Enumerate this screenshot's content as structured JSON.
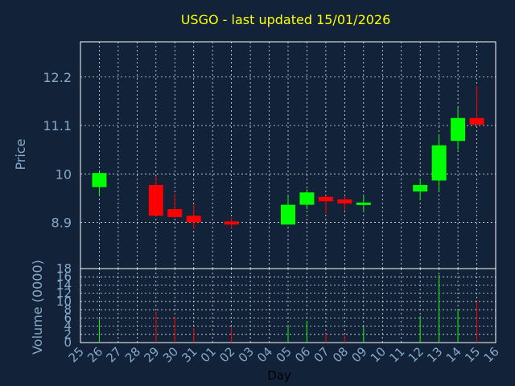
{
  "chart_data": {
    "type": "candlestick",
    "title": "USGO - last updated 15/01/2026",
    "price_ylabel": "Price",
    "volume_ylabel": "Volume (0000)",
    "xlabel": "Day",
    "x_ticks": [
      "25",
      "26",
      "27",
      "28",
      "29",
      "30",
      "31",
      "01",
      "02",
      "03",
      "04",
      "05",
      "06",
      "07",
      "08",
      "09",
      "10",
      "11",
      "12",
      "13",
      "14",
      "15",
      "16"
    ],
    "price_ticks": [
      "12.2",
      "11.1",
      "10",
      "8.9"
    ],
    "price_tick_values": [
      12.2,
      11.1,
      10.0,
      8.9
    ],
    "price_ylim": [
      7.85,
      13.0
    ],
    "volume_ticks": [
      "18",
      "16",
      "14",
      "12",
      "10",
      "8",
      "6",
      "4",
      "2",
      "0"
    ],
    "volume_tick_values": [
      18,
      16,
      14,
      12,
      10,
      8,
      6,
      4,
      2,
      0
    ],
    "volume_ylim": [
      0,
      18
    ],
    "colors": {
      "up": "#00ff00",
      "down": "#ff0000",
      "title": "#ffff00",
      "axis_text": "#87a9c9",
      "background": "#122238",
      "grid": "#ffffff"
    },
    "candles": [
      {
        "day": "26",
        "open": 9.7,
        "high": 10.05,
        "low": 9.5,
        "close": 10.02,
        "volume": 5.8
      },
      {
        "day": "29",
        "open": 9.75,
        "high": 9.95,
        "low": 9.05,
        "close": 9.05,
        "volume": 7.5
      },
      {
        "day": "30",
        "open": 9.2,
        "high": 9.55,
        "low": 9.0,
        "close": 9.02,
        "volume": 6.2
      },
      {
        "day": "31",
        "open": 9.05,
        "high": 9.3,
        "low": 8.75,
        "close": 8.9,
        "volume": 3.5
      },
      {
        "day": "02",
        "open": 8.92,
        "high": 9.0,
        "low": 8.75,
        "close": 8.85,
        "volume": 3.8
      },
      {
        "day": "05",
        "open": 8.85,
        "high": 9.5,
        "low": 8.85,
        "close": 9.3,
        "volume": 4.2
      },
      {
        "day": "06",
        "open": 9.3,
        "high": 9.65,
        "low": 9.2,
        "close": 9.58,
        "volume": 5.2
      },
      {
        "day": "07",
        "open": 9.48,
        "high": 9.5,
        "low": 9.1,
        "close": 9.38,
        "volume": 2.2
      },
      {
        "day": "08",
        "open": 9.42,
        "high": 9.48,
        "low": 9.17,
        "close": 9.33,
        "volume": 1.8
      },
      {
        "day": "09",
        "open": 9.3,
        "high": 9.5,
        "low": 9.15,
        "close": 9.35,
        "volume": 4.0
      },
      {
        "day": "12",
        "open": 9.6,
        "high": 9.9,
        "low": 9.4,
        "close": 9.75,
        "volume": 6.5
      },
      {
        "day": "13",
        "open": 9.85,
        "high": 10.9,
        "low": 9.62,
        "close": 10.65,
        "volume": 16.5
      },
      {
        "day": "14",
        "open": 10.75,
        "high": 11.5,
        "low": 10.55,
        "close": 11.27,
        "volume": 8.2
      },
      {
        "day": "15",
        "open": 11.27,
        "high": 12.0,
        "low": 11.1,
        "close": 11.12,
        "volume": 10.0
      }
    ]
  }
}
